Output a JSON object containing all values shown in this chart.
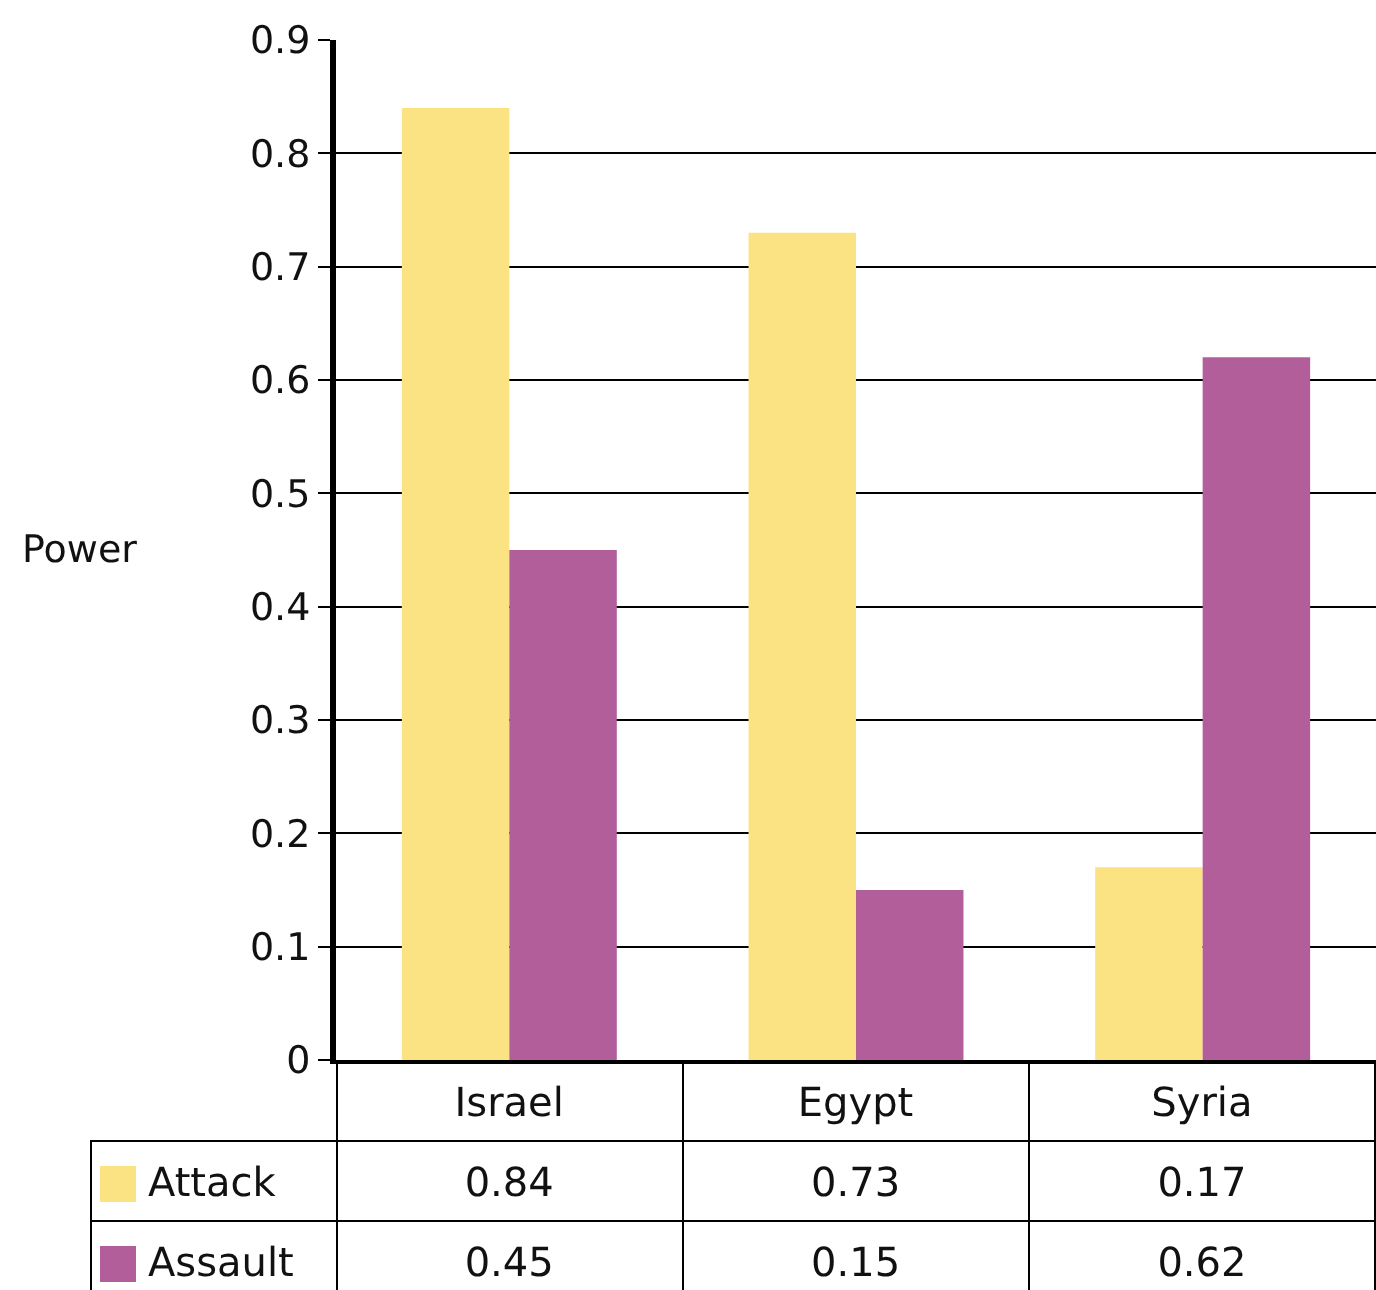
{
  "chart_data": {
    "type": "bar",
    "ylabel": "Power",
    "categories": [
      "Israel",
      "Egypt",
      "Syria"
    ],
    "series": [
      {
        "name": "Attack",
        "color": "#fbe384",
        "values": [
          0.84,
          0.73,
          0.17
        ]
      },
      {
        "name": "Assault",
        "color": "#b25e9a",
        "values": [
          0.45,
          0.15,
          0.62
        ]
      }
    ],
    "ylim": [
      0,
      0.9
    ],
    "yticks": [
      0,
      0.1,
      0.2,
      0.3,
      0.4,
      0.5,
      0.6,
      0.7,
      0.8,
      0.9
    ],
    "grid": "y",
    "legend": "bottom left",
    "data_labels": true
  }
}
